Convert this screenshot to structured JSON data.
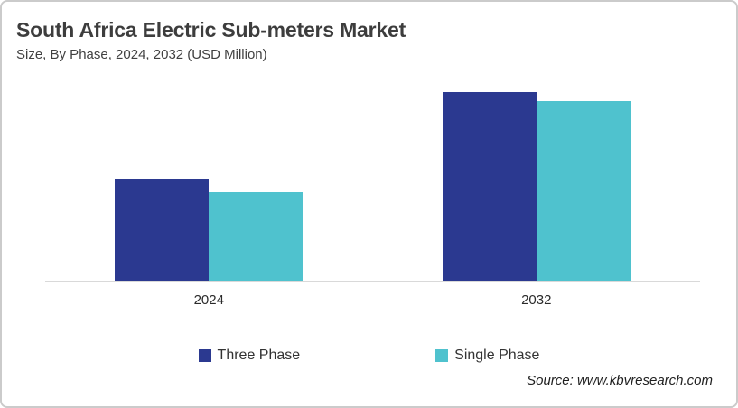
{
  "header": {
    "title": "South Africa Electric Sub-meters Market",
    "subtitle": "Size, By Phase, 2024, 2032 (USD Million)"
  },
  "footer": {
    "source": "Source: www.kbvresearch.com"
  },
  "colors": {
    "three_phase": "#2B3990",
    "single_phase": "#4FC2CE",
    "axis_line": "#D9D9D9",
    "frame_border": "#CBCBCB",
    "text": "#404040"
  },
  "chart_data": {
    "type": "bar",
    "title": "South Africa Electric Sub-meters Market",
    "subtitle": "Size, By Phase, 2024, 2032 (USD Million)",
    "unit": "USD Million",
    "categories": [
      "2024",
      "2032"
    ],
    "series": [
      {
        "name": "Three Phase",
        "color": "#2B3990",
        "values_relative": [
          54,
          100
        ]
      },
      {
        "name": "Single Phase",
        "color": "#4FC2CE",
        "values_relative": [
          47,
          95
        ]
      }
    ],
    "scale_max": 100,
    "value_axis_visible": false,
    "grid": false,
    "legend_position": "bottom",
    "source": "Source: www.kbvresearch.com"
  }
}
